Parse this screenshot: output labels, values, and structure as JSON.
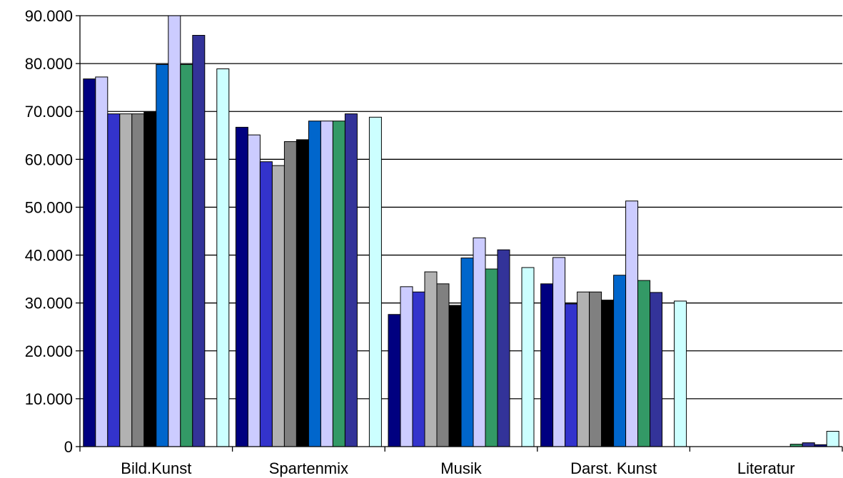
{
  "chart_data": {
    "type": "bar",
    "title": "",
    "xlabel": "",
    "ylabel": "",
    "ylim": [
      0,
      90000
    ],
    "grid": true,
    "y_ticks": [
      "0",
      "10.000",
      "20.000",
      "30.000",
      "40.000",
      "50.000",
      "60.000",
      "70.000",
      "80.000",
      "90.000"
    ],
    "y_tick_values": [
      0,
      10000,
      20000,
      30000,
      40000,
      50000,
      60000,
      70000,
      80000,
      90000
    ],
    "categories": [
      "Bild.Kunst",
      "Spartenmix",
      "Musik",
      "Darst. Kunst",
      "Literatur"
    ],
    "series": [
      {
        "color": "#000080",
        "values": [
          76800,
          66700,
          27600,
          34000,
          0
        ]
      },
      {
        "color": "#ccccff",
        "values": [
          77200,
          65100,
          33400,
          39500,
          0
        ]
      },
      {
        "color": "#3333cc",
        "values": [
          69500,
          59500,
          32300,
          29800,
          0
        ]
      },
      {
        "color": "#b2b2b2",
        "values": [
          69500,
          58700,
          36500,
          32300,
          0
        ]
      },
      {
        "color": "#808080",
        "values": [
          69500,
          63700,
          34000,
          32300,
          0
        ]
      },
      {
        "color": "#000000",
        "values": [
          69900,
          64100,
          29500,
          30600,
          0
        ]
      },
      {
        "color": "#0066cc",
        "values": [
          79800,
          68000,
          39400,
          35800,
          0
        ]
      },
      {
        "color": "#ccccff",
        "values": [
          90000,
          68000,
          43600,
          51300,
          0
        ]
      },
      {
        "color": "#339966",
        "values": [
          79800,
          68000,
          37100,
          34700,
          500
        ]
      },
      {
        "color": "#333399",
        "values": [
          85900,
          69500,
          41100,
          32200,
          800
        ]
      },
      {
        "color": "#000080",
        "values": [
          0,
          0,
          0,
          0,
          400
        ]
      },
      {
        "color": "#ccffff",
        "values": [
          78900,
          68800,
          37400,
          30400,
          3200
        ]
      }
    ]
  }
}
